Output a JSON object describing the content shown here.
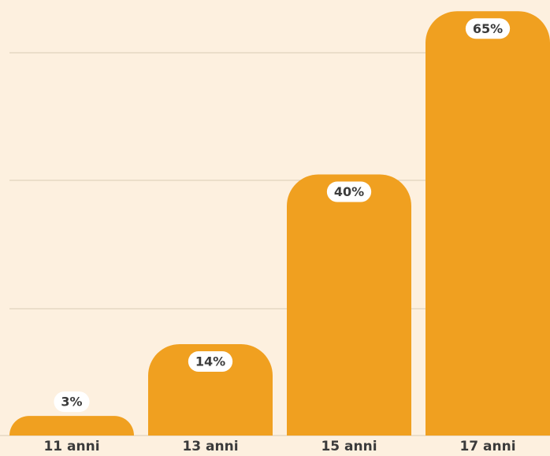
{
  "chart_data": {
    "type": "bar",
    "categories": [
      "11 anni",
      "13 anni",
      "15 anni",
      "17 anni"
    ],
    "values": [
      3,
      14,
      40,
      65
    ],
    "value_labels": [
      "3%",
      "14%",
      "40%",
      "65%"
    ],
    "color": "#f0a020",
    "ylim": [
      0,
      66
    ]
  }
}
